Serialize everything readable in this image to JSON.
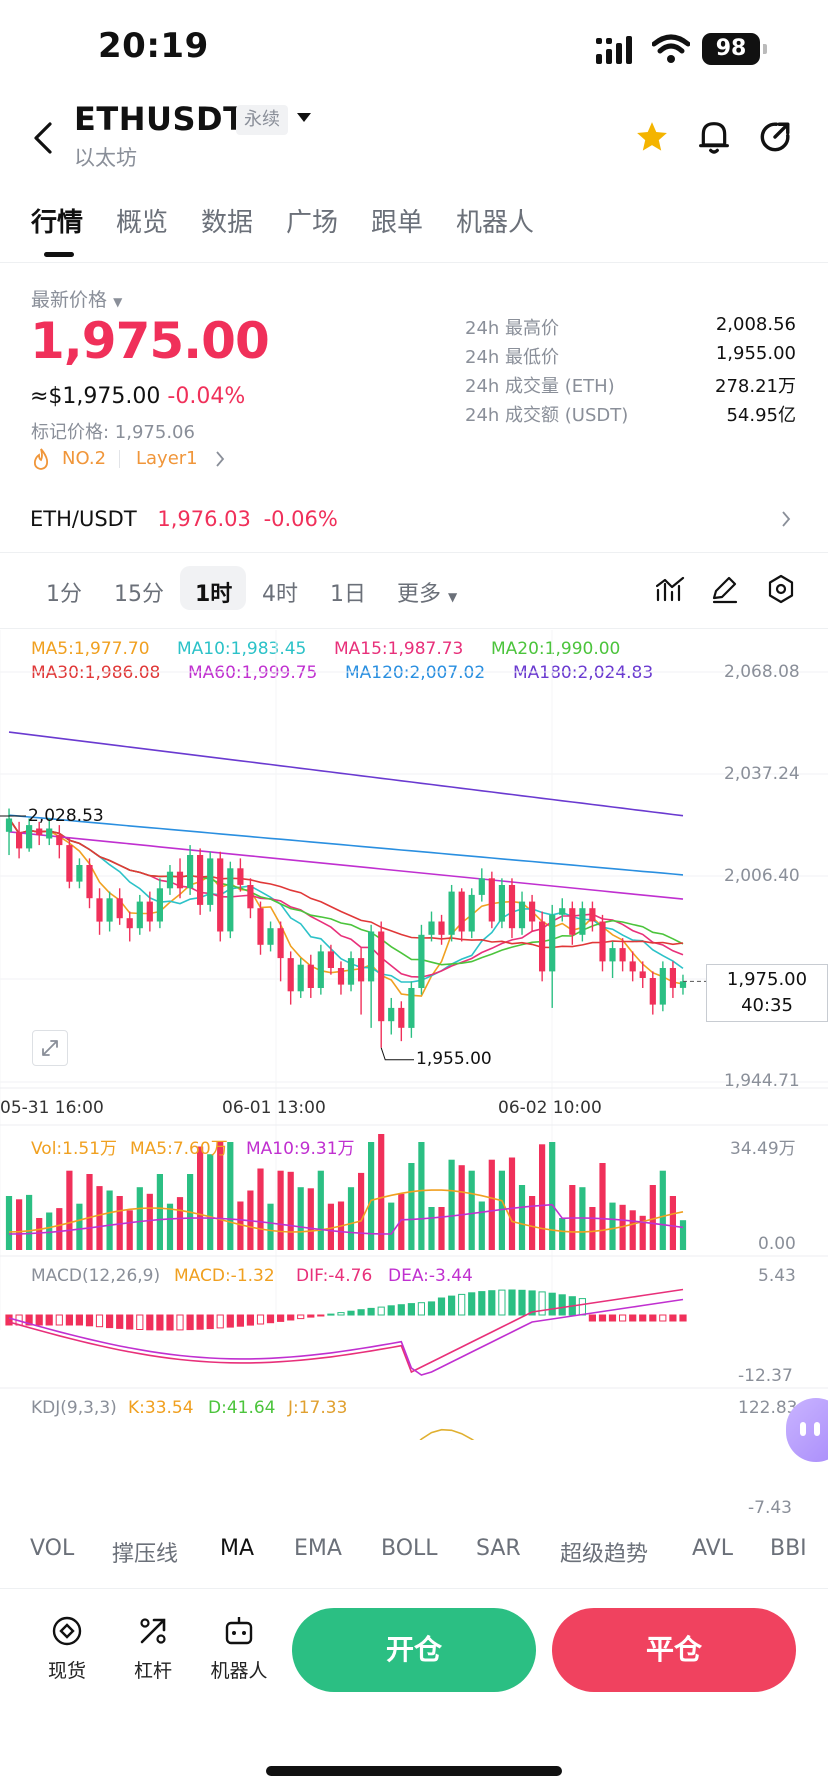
{
  "status_bar": {
    "time": "20:19",
    "battery": "98"
  },
  "header": {
    "symbol": "ETHUSDT",
    "badge": "永续",
    "subtitle": "以太坊"
  },
  "tabs": [
    "行情",
    "概览",
    "数据",
    "广场",
    "跟单",
    "机器人"
  ],
  "price": {
    "label": "最新价格",
    "last": "1,975.00",
    "usd": "≈$1,975.00",
    "change": "-0.04%",
    "mark": "标记价格: 1,975.06",
    "rank": "NO.2",
    "category": "Layer1"
  },
  "stats": [
    {
      "label": "24h 最高价",
      "value": "2,008.56"
    },
    {
      "label": "24h 最低价",
      "value": "1,955.00"
    },
    {
      "label": "24h 成交量 (ETH)",
      "value": "278.21万"
    },
    {
      "label": "24h 成交额 (USDT)",
      "value": "54.95亿"
    }
  ],
  "spot_pair": {
    "name": "ETH/USDT",
    "price": "1,976.03",
    "change": "-0.06%"
  },
  "intervals": [
    "1分",
    "15分",
    "1时",
    "4时",
    "1日",
    "更多"
  ],
  "ma_legend": [
    {
      "label": "MA5:1,977.70",
      "color": "#f0a020"
    },
    {
      "label": "MA10:1,983.45",
      "color": "#2cc2c8"
    },
    {
      "label": "MA15:1,987.73",
      "color": "#e8307a"
    },
    {
      "label": "MA20:1,990.00",
      "color": "#4cc43c"
    },
    {
      "label": "MA30:1,986.08",
      "color": "#e03838"
    },
    {
      "label": "MA60:1,999.75",
      "color": "#c030d0"
    },
    {
      "label": "MA120:2,007.02",
      "color": "#2a8fe0"
    },
    {
      "label": "MA180:2,024.83",
      "color": "#6a3ad0"
    }
  ],
  "chart_data": {
    "type": "candlestick",
    "y_ticks": [
      "2,068.08",
      "2,037.24",
      "2,006.40",
      "1,944.71"
    ],
    "ylim": [
      1944.71,
      2068.08
    ],
    "x_ticks": [
      "05-31 16:00",
      "06-01 13:00",
      "06-02 10:00"
    ],
    "high_label": "2,028.53",
    "low_label": "1,955.00",
    "current_price": "1,975.00",
    "countdown": "40:35",
    "candles": [
      [
        2020,
        2024,
        2013,
        2027
      ],
      [
        2020,
        2015,
        2012,
        2023
      ],
      [
        2015,
        2022,
        2014,
        2024
      ],
      [
        2021,
        2019,
        2016,
        2023
      ],
      [
        2018,
        2021,
        2016,
        2024
      ],
      [
        2019,
        2016,
        2012,
        2022
      ],
      [
        2016,
        2005,
        2003,
        2018
      ],
      [
        2005,
        2010,
        2003,
        2012
      ],
      [
        2010,
        2000,
        1997,
        2012
      ],
      [
        2000,
        1993,
        1989,
        2003
      ],
      [
        1993,
        2000,
        1990,
        2002
      ],
      [
        2000,
        1994,
        1992,
        2003
      ],
      [
        1994,
        1991,
        1987,
        1996
      ],
      [
        1991,
        1999,
        1989,
        2001
      ],
      [
        1999,
        1993,
        1990,
        2002
      ],
      [
        1993,
        2003,
        1991,
        2006
      ],
      [
        2003,
        2008,
        2001,
        2010
      ],
      [
        2008,
        2003,
        2000,
        2012
      ],
      [
        2003,
        2013,
        2001,
        2016
      ],
      [
        2013,
        1998,
        1995,
        2015
      ],
      [
        1998,
        2012,
        1996,
        2014
      ],
      [
        2012,
        1990,
        1987,
        2014
      ],
      [
        1990,
        2009,
        1988,
        2011
      ],
      [
        2009,
        2004,
        2002,
        2012
      ],
      [
        2004,
        1997,
        1994,
        2006
      ],
      [
        1997,
        1986,
        1983,
        1999
      ],
      [
        1986,
        1991,
        1984,
        1993
      ],
      [
        1991,
        1982,
        1975,
        1993
      ],
      [
        1982,
        1972,
        1968,
        1984
      ],
      [
        1972,
        1980,
        1970,
        1982
      ],
      [
        1980,
        1973,
        1970,
        1983
      ],
      [
        1973,
        1984,
        1971,
        1986
      ],
      [
        1984,
        1979,
        1977,
        1986
      ],
      [
        1979,
        1974,
        1971,
        1981
      ],
      [
        1974,
        1982,
        1972,
        1984
      ],
      [
        1982,
        1975,
        1965,
        1985
      ],
      [
        1975,
        1990,
        1961,
        1992
      ],
      [
        1990,
        1963,
        1955,
        1993
      ],
      [
        1963,
        1967,
        1959,
        1970
      ],
      [
        1967,
        1961,
        1957,
        1969
      ],
      [
        1961,
        1973,
        1958,
        1975
      ],
      [
        1973,
        1989,
        1971,
        1992
      ],
      [
        1989,
        1993,
        1987,
        1996
      ],
      [
        1993,
        1989,
        1986,
        1995
      ],
      [
        1989,
        2002,
        1987,
        2004
      ],
      [
        2002,
        1990,
        1987,
        2003
      ],
      [
        1990,
        2001,
        1988,
        2003
      ],
      [
        2001,
        2006,
        1999,
        2009
      ],
      [
        2006,
        1993,
        1991,
        2008
      ],
      [
        1993,
        2004,
        1991,
        2006
      ],
      [
        2004,
        1991,
        1988,
        2006
      ],
      [
        1991,
        1999,
        1989,
        2002
      ],
      [
        1999,
        1993,
        1990,
        2001
      ],
      [
        1993,
        1978,
        1975,
        1996
      ],
      [
        1978,
        1995,
        1967,
        1998
      ],
      [
        1995,
        1997,
        1993,
        2000
      ],
      [
        1997,
        1989,
        1986,
        1999
      ],
      [
        1989,
        1997,
        1987,
        1999
      ],
      [
        1997,
        1993,
        1990,
        1999
      ],
      [
        1993,
        1981,
        1978,
        1995
      ],
      [
        1981,
        1985,
        1976,
        1987
      ],
      [
        1985,
        1981,
        1978,
        1988
      ],
      [
        1981,
        1978,
        1975,
        1984
      ],
      [
        1978,
        1976,
        1973,
        1981
      ],
      [
        1976,
        1968,
        1965,
        1978
      ],
      [
        1968,
        1979,
        1966,
        1981
      ],
      [
        1979,
        1973,
        1970,
        1981
      ],
      [
        1973,
        1975,
        1971,
        1977
      ]
    ]
  },
  "vol_panel": {
    "vol": "Vol:1.51万",
    "ma5": "MA5:7.60万",
    "ma10": "MA10:9.31万",
    "max": "34.49万",
    "min": "0.00"
  },
  "macd_panel": {
    "title": "MACD(12,26,9)",
    "macd": "MACD:-1.32",
    "dif": "DIF:-4.76",
    "dea": "DEA:-3.44",
    "max": "5.43",
    "min": "-12.37"
  },
  "kdj_panel": {
    "title": "KDJ(9,3,3)",
    "k": "K:33.54",
    "d": "D:41.64",
    "j": "J:17.33",
    "max": "122.83",
    "min": "-7.43"
  },
  "indicator_tabs": [
    "VOL",
    "撑压线",
    "MA",
    "EMA",
    "BOLL",
    "SAR",
    "超级趋势",
    "AVL",
    "BBI"
  ],
  "bottom_bar": {
    "spot": "现货",
    "margin": "杠杆",
    "bot": "机器人",
    "open": "开仓",
    "close": "平仓"
  }
}
